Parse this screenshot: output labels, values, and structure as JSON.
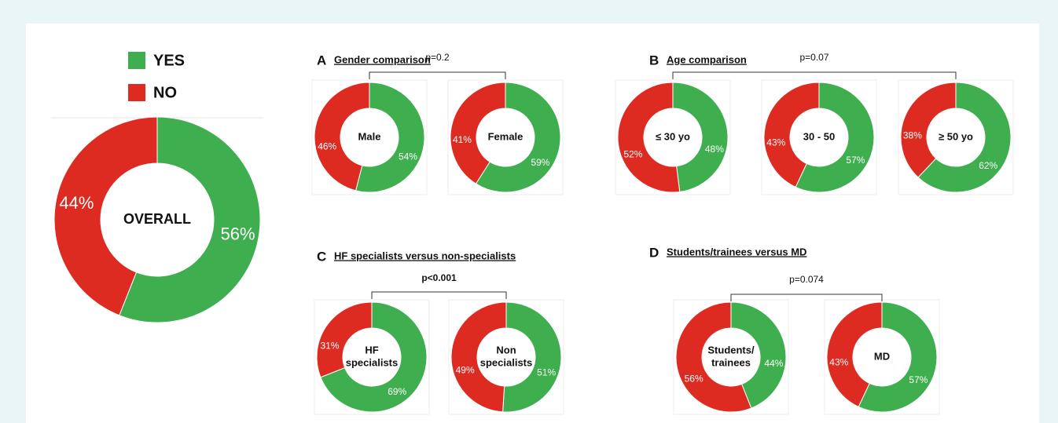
{
  "chart_data": [
    {
      "type": "donut",
      "center_label": [
        "OVERALL"
      ],
      "categories": [
        "YES",
        "NO"
      ],
      "values": [
        56,
        44
      ],
      "value_labels": [
        "56%",
        "44%"
      ],
      "colors": [
        "#3fae4f",
        "#dd2b22"
      ]
    },
    {
      "type": "donut",
      "center_label": [
        "Male"
      ],
      "categories": [
        "YES",
        "NO"
      ],
      "values": [
        54,
        46
      ],
      "value_labels": [
        "54%",
        "46%"
      ],
      "colors": [
        "#3fae4f",
        "#dd2b22"
      ]
    },
    {
      "type": "donut",
      "center_label": [
        "Female"
      ],
      "categories": [
        "YES",
        "NO"
      ],
      "values": [
        59,
        41
      ],
      "value_labels": [
        "59%",
        "41%"
      ],
      "colors": [
        "#3fae4f",
        "#dd2b22"
      ]
    },
    {
      "type": "donut",
      "center_label": [
        "≤ 30 yo"
      ],
      "categories": [
        "YES",
        "NO"
      ],
      "values": [
        48,
        52
      ],
      "value_labels": [
        "48%",
        "52%"
      ],
      "colors": [
        "#3fae4f",
        "#dd2b22"
      ]
    },
    {
      "type": "donut",
      "center_label": [
        "30 - 50"
      ],
      "categories": [
        "YES",
        "NO"
      ],
      "values": [
        57,
        43
      ],
      "value_labels": [
        "57%",
        "43%"
      ],
      "colors": [
        "#3fae4f",
        "#dd2b22"
      ]
    },
    {
      "type": "donut",
      "center_label": [
        "≥ 50 yo"
      ],
      "categories": [
        "YES",
        "NO"
      ],
      "values": [
        62,
        38
      ],
      "value_labels": [
        "62%",
        "38%"
      ],
      "colors": [
        "#3fae4f",
        "#dd2b22"
      ]
    },
    {
      "type": "donut",
      "center_label": [
        "HF",
        "specialists"
      ],
      "categories": [
        "YES",
        "NO"
      ],
      "values": [
        69,
        31
      ],
      "value_labels": [
        "69%",
        "31%"
      ],
      "colors": [
        "#3fae4f",
        "#dd2b22"
      ]
    },
    {
      "type": "donut",
      "center_label": [
        "Non",
        "specialists"
      ],
      "categories": [
        "YES",
        "NO"
      ],
      "values": [
        51,
        49
      ],
      "value_labels": [
        "51%",
        "49%"
      ],
      "colors": [
        "#3fae4f",
        "#dd2b22"
      ]
    },
    {
      "type": "donut",
      "center_label": [
        "Students/",
        "trainees"
      ],
      "categories": [
        "YES",
        "NO"
      ],
      "values": [
        44,
        56
      ],
      "value_labels": [
        "44%",
        "56%"
      ],
      "colors": [
        "#3fae4f",
        "#dd2b22"
      ]
    },
    {
      "type": "donut",
      "center_label": [
        "MD"
      ],
      "categories": [
        "YES",
        "NO"
      ],
      "values": [
        57,
        43
      ],
      "value_labels": [
        "57%",
        "43%"
      ],
      "colors": [
        "#3fae4f",
        "#dd2b22"
      ]
    }
  ],
  "panels": [
    {
      "letter": "A",
      "title": "Gender comparison",
      "annotation": "p=0.2"
    },
    {
      "letter": "B",
      "title": "Age comparison",
      "annotation": "p=0.07"
    },
    {
      "letter": "C",
      "title": "HF specialists versus non-specialists",
      "annotation": "p<0.001"
    },
    {
      "letter": "D",
      "title": "Students/trainees versus MD",
      "annotation": "p=0.074"
    }
  ]
}
